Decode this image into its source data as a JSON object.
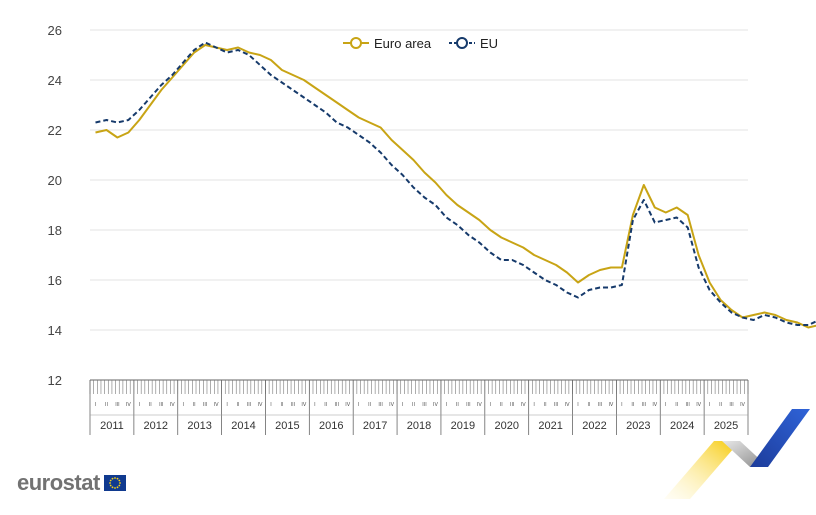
{
  "chart_data": {
    "type": "line",
    "title": "",
    "xlabel": "",
    "ylabel": "",
    "ylim": [
      12,
      26
    ],
    "yticks": [
      "12",
      "14",
      "16",
      "18",
      "20",
      "22",
      "24",
      "26"
    ],
    "years": [
      "2011",
      "2012",
      "2013",
      "2014",
      "2015",
      "2016",
      "2017",
      "2018",
      "2019",
      "2020",
      "2021",
      "2022",
      "2023",
      "2024",
      "2025"
    ],
    "quarters": [
      "I",
      "II",
      "III",
      "IV"
    ],
    "grid": true,
    "legend_position": "top",
    "series": [
      {
        "name": "Euro area",
        "color": "#c8a415",
        "dashed": false,
        "values": [
          21.9,
          22.0,
          21.7,
          21.9,
          22.4,
          23.0,
          23.6,
          24.1,
          24.6,
          25.1,
          25.4,
          25.3,
          25.2,
          25.3,
          25.1,
          25.0,
          24.8,
          24.4,
          24.2,
          24.0,
          23.7,
          23.4,
          23.1,
          22.8,
          22.5,
          22.3,
          22.1,
          21.6,
          21.2,
          20.8,
          20.3,
          19.9,
          19.4,
          19.0,
          18.7,
          18.4,
          18.0,
          17.7,
          17.5,
          17.3,
          17.0,
          16.8,
          16.6,
          16.3,
          15.9,
          16.2,
          16.4,
          16.5,
          16.5,
          18.6,
          19.8,
          18.9,
          18.7,
          18.9,
          18.6,
          17.0,
          15.9,
          15.2,
          14.8,
          14.5,
          14.6,
          14.7,
          14.6,
          14.4,
          14.3,
          14.1,
          14.2,
          14.5,
          14.8,
          14.9,
          14.8,
          14.6,
          14.6,
          14.8,
          14.9,
          14.7,
          14.6,
          14.7,
          14.4
        ]
      },
      {
        "name": "EU",
        "color": "#163a6b",
        "dashed": true,
        "values": [
          22.3,
          22.4,
          22.3,
          22.4,
          22.8,
          23.3,
          23.8,
          24.2,
          24.7,
          25.2,
          25.5,
          25.3,
          25.1,
          25.2,
          25.0,
          24.6,
          24.2,
          23.9,
          23.6,
          23.3,
          23.0,
          22.7,
          22.3,
          22.1,
          21.8,
          21.5,
          21.1,
          20.6,
          20.2,
          19.7,
          19.3,
          19.0,
          18.5,
          18.2,
          17.8,
          17.5,
          17.1,
          16.8,
          16.8,
          16.6,
          16.3,
          16.0,
          15.8,
          15.5,
          15.3,
          15.6,
          15.7,
          15.7,
          15.8,
          18.4,
          19.2,
          18.3,
          18.4,
          18.5,
          18.1,
          16.5,
          15.6,
          15.1,
          14.7,
          14.5,
          14.4,
          14.6,
          14.5,
          14.3,
          14.2,
          14.2,
          14.4,
          14.8,
          15.1,
          15.0,
          14.8,
          14.8,
          15.0,
          15.2,
          15.0,
          15.0,
          15.1,
          14.8,
          14.8
        ]
      }
    ]
  },
  "branding": {
    "logo_text": "eurostat",
    "flag_color": "#103a8f",
    "star_color": "#f7d117"
  }
}
